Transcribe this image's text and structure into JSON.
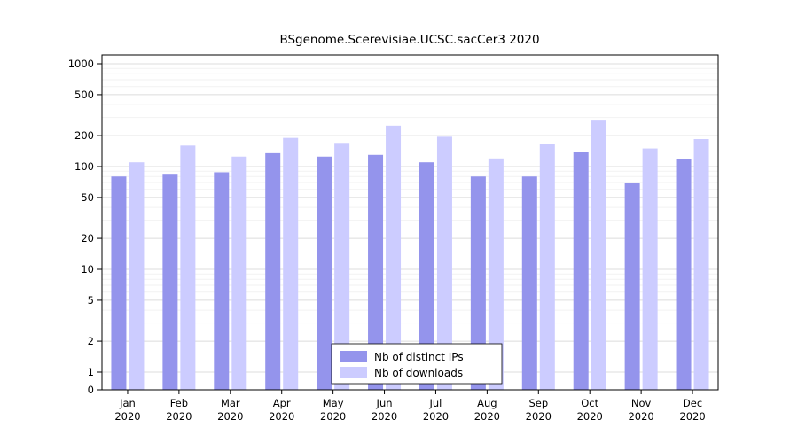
{
  "chart_data": {
    "type": "bar",
    "title": "BSgenome.Scerevisiae.UCSC.sacCer3 2020",
    "categories": [
      "Jan",
      "Feb",
      "Mar",
      "Apr",
      "May",
      "Jun",
      "Jul",
      "Aug",
      "Sep",
      "Oct",
      "Nov",
      "Dec"
    ],
    "category_year": "2020",
    "series": [
      {
        "name": "Nb of distinct IPs",
        "color": "#9494ec",
        "values": [
          80,
          85,
          88,
          135,
          125,
          130,
          110,
          80,
          80,
          140,
          70,
          118
        ]
      },
      {
        "name": "Nb of downloads",
        "color": "#ccccff",
        "values": [
          110,
          160,
          125,
          190,
          170,
          250,
          195,
          120,
          165,
          280,
          150,
          185
        ]
      }
    ],
    "y_ticks": [
      0,
      1,
      2,
      5,
      10,
      20,
      50,
      100,
      200,
      500,
      1000
    ],
    "y_scale": "log",
    "y_axis_range": [
      0,
      1000
    ],
    "grid": true,
    "legend_position": "bottom-center"
  },
  "colors": {
    "bar_distinct_ips": "#9494ec",
    "bar_downloads": "#ccccff",
    "grid_major": "#dcdcdc",
    "grid_minor": "#f2f2f2",
    "axis": "#000000",
    "background": "#ffffff",
    "legend_border": "#000000",
    "legend_fill": "#ffffff"
  }
}
